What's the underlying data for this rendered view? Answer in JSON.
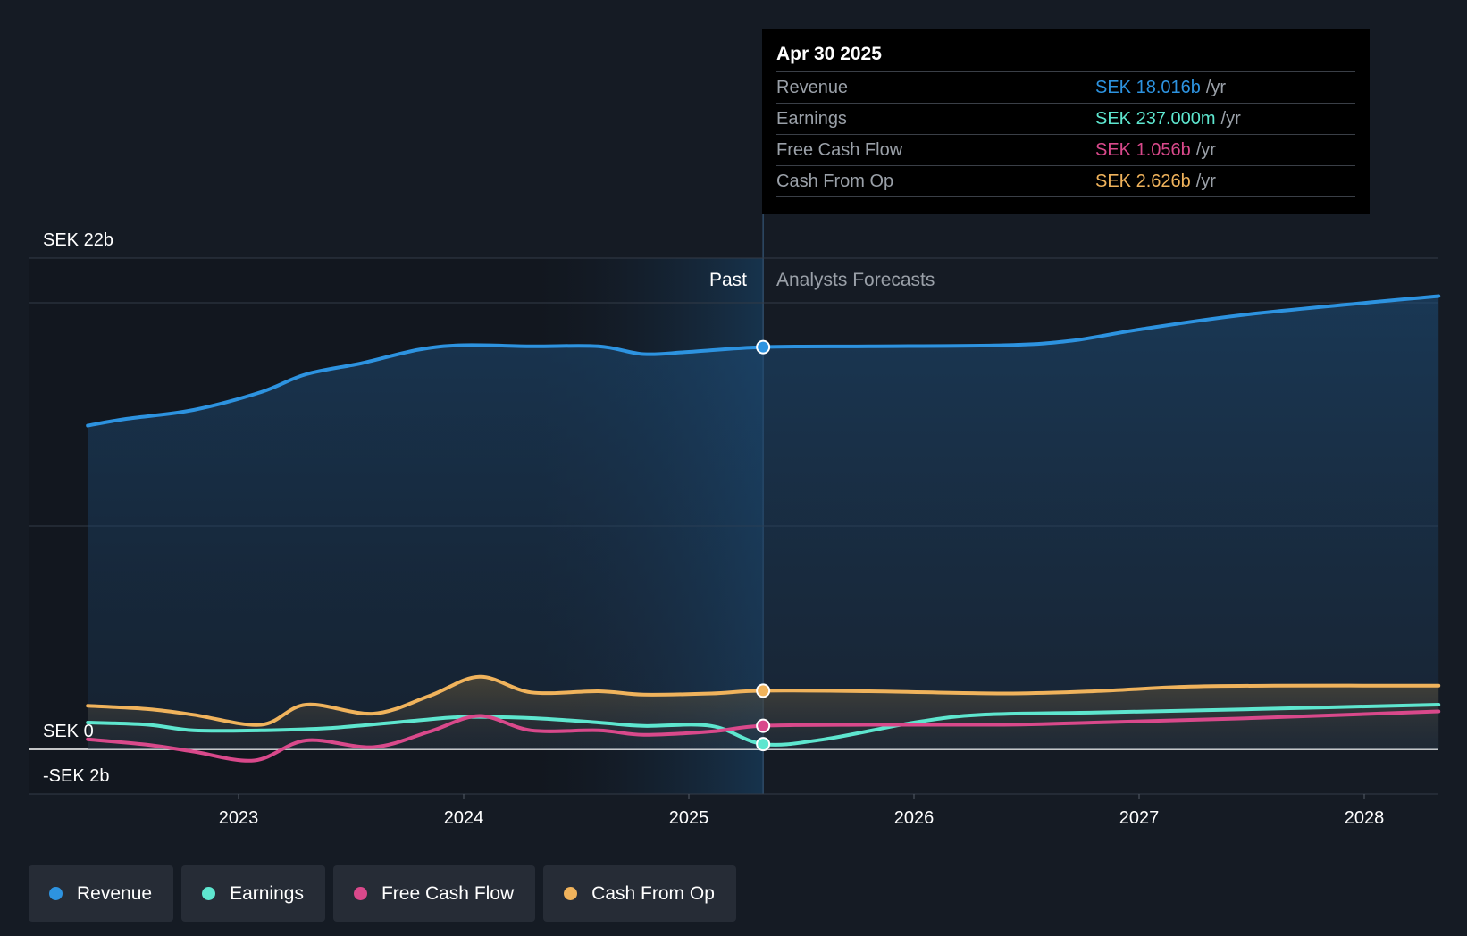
{
  "tooltip": {
    "date": "Apr 30 2025",
    "unit": "/yr",
    "rows": [
      {
        "label": "Revenue",
        "value": "SEK 18.016b",
        "color": "#2d93e0"
      },
      {
        "label": "Earnings",
        "value": "SEK 237.000m",
        "color": "#5ee6cf"
      },
      {
        "label": "Free Cash Flow",
        "value": "SEK 1.056b",
        "color": "#d9498b"
      },
      {
        "label": "Cash From Op",
        "value": "SEK 2.626b",
        "color": "#f0b35c"
      }
    ]
  },
  "labels": {
    "past": "Past",
    "forecast": "Analysts Forecasts"
  },
  "legend": [
    {
      "label": "Revenue",
      "color": "#2d93e0"
    },
    {
      "label": "Earnings",
      "color": "#5ee6cf"
    },
    {
      "label": "Free Cash Flow",
      "color": "#d9498b"
    },
    {
      "label": "Cash From Op",
      "color": "#f0b35c"
    }
  ],
  "chart_data": {
    "type": "line",
    "x_range": [
      2022.3,
      2028.33
    ],
    "ylim": [
      -2,
      22
    ],
    "y_ticks": [
      {
        "value": 22,
        "label": "SEK 22b"
      },
      {
        "value": 0,
        "label": "SEK 0"
      },
      {
        "value": -2,
        "label": "-SEK 2b"
      }
    ],
    "x_ticks": [
      {
        "value": 2023,
        "label": "2023"
      },
      {
        "value": 2024,
        "label": "2024"
      },
      {
        "value": 2025,
        "label": "2025"
      },
      {
        "value": 2026,
        "label": "2026"
      },
      {
        "value": 2027,
        "label": "2027"
      },
      {
        "value": 2028,
        "label": "2028"
      }
    ],
    "grid_values": [
      20,
      10
    ],
    "highlight_start": 2024.33,
    "divider": 2025.33,
    "series": [
      {
        "name": "Revenue",
        "color": "#2d93e0",
        "area": true,
        "x": [
          2022.33,
          2022.5,
          2022.8,
          2023.1,
          2023.3,
          2023.55,
          2023.8,
          2024.0,
          2024.3,
          2024.6,
          2024.8,
          2025.0,
          2025.33,
          2025.8,
          2026.4,
          2026.7,
          2027.0,
          2027.5,
          2028.33
        ],
        "y": [
          14.5,
          14.8,
          15.2,
          16.0,
          16.8,
          17.3,
          17.9,
          18.1,
          18.05,
          18.05,
          17.7,
          17.8,
          18.016,
          18.05,
          18.1,
          18.3,
          18.8,
          19.5,
          20.3
        ]
      },
      {
        "name": "Cash From Op",
        "color": "#f0b35c",
        "area": true,
        "x": [
          2022.33,
          2022.6,
          2022.8,
          2023.1,
          2023.3,
          2023.6,
          2023.85,
          2024.07,
          2024.3,
          2024.6,
          2024.8,
          2025.1,
          2025.33,
          2025.8,
          2026.4,
          2026.8,
          2027.2,
          2027.6,
          2028.33
        ],
        "y": [
          1.95,
          1.8,
          1.55,
          1.1,
          2.0,
          1.6,
          2.4,
          3.25,
          2.55,
          2.6,
          2.45,
          2.5,
          2.626,
          2.6,
          2.5,
          2.6,
          2.8,
          2.85,
          2.85
        ]
      },
      {
        "name": "Earnings",
        "color": "#5ee6cf",
        "area": false,
        "x": [
          2022.33,
          2022.6,
          2022.8,
          2023.1,
          2023.4,
          2023.8,
          2024.0,
          2024.3,
          2024.6,
          2024.8,
          2025.1,
          2025.33,
          2025.6,
          2026.0,
          2026.3,
          2026.8,
          2027.5,
          2028.33
        ],
        "y": [
          1.2,
          1.1,
          0.85,
          0.85,
          0.95,
          1.3,
          1.45,
          1.4,
          1.2,
          1.05,
          1.05,
          0.237,
          0.45,
          1.2,
          1.55,
          1.65,
          1.8,
          2.0
        ]
      },
      {
        "name": "Free Cash Flow",
        "color": "#d9498b",
        "area": false,
        "x": [
          2022.33,
          2022.6,
          2022.8,
          2023.07,
          2023.3,
          2023.6,
          2023.85,
          2024.07,
          2024.3,
          2024.6,
          2024.8,
          2025.1,
          2025.33,
          2025.8,
          2026.4,
          2026.8,
          2027.5,
          2028.33
        ],
        "y": [
          0.45,
          0.2,
          -0.1,
          -0.5,
          0.4,
          0.1,
          0.8,
          1.5,
          0.85,
          0.85,
          0.65,
          0.8,
          1.056,
          1.1,
          1.1,
          1.2,
          1.4,
          1.7
        ]
      }
    ]
  }
}
